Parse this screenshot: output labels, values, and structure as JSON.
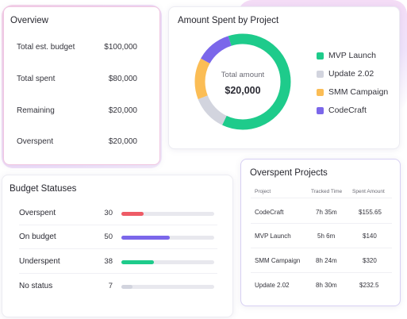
{
  "overview": {
    "title": "Overview",
    "rows": [
      {
        "label": "Total est. budget",
        "value": "$100,000"
      },
      {
        "label": "Total spent",
        "value": "$80,000"
      },
      {
        "label": "Remaining",
        "value": "$20,000"
      },
      {
        "label": "Overspent",
        "value": "$20,000"
      }
    ]
  },
  "donut": {
    "title": "Amount Spent by Project",
    "center_label": "Total amount",
    "center_value": "$20,000",
    "segments": [
      {
        "name": "MVP Launch",
        "fraction": 0.62,
        "color": "#1ecb8b"
      },
      {
        "name": "Update 2.02",
        "fraction": 0.12,
        "color": "#d2d4de"
      },
      {
        "name": "SMM Campaign",
        "fraction": 0.14,
        "color": "#fbbd55"
      },
      {
        "name": "CodeCraft",
        "fraction": 0.12,
        "color": "#7b67ea"
      }
    ]
  },
  "statuses": {
    "title": "Budget Statuses",
    "rows": [
      {
        "label": "Overspent",
        "count": "30",
        "fill": 0.24,
        "color": "#ee5b66"
      },
      {
        "label": "On budget",
        "count": "50",
        "fill": 0.52,
        "color": "#7b67ea"
      },
      {
        "label": "Underspent",
        "count": "38",
        "fill": 0.35,
        "color": "#1ecb8b"
      },
      {
        "label": "No status",
        "count": "7",
        "fill": 0.12,
        "color": "#d2d4de"
      }
    ]
  },
  "overspent": {
    "title": "Overspent Projects",
    "columns": [
      "Project",
      "Tracked Time",
      "Spent Amount"
    ],
    "rows": [
      {
        "project": "CodeCraft",
        "time": "7h 35m",
        "amount": "$155.65"
      },
      {
        "project": "MVP Launch",
        "time": "5h 6m",
        "amount": "$140"
      },
      {
        "project": "SMM Campaign",
        "time": "8h 24m",
        "amount": "$320"
      },
      {
        "project": "Update 2.02",
        "time": "8h 30m",
        "amount": "$232.5"
      }
    ]
  }
}
